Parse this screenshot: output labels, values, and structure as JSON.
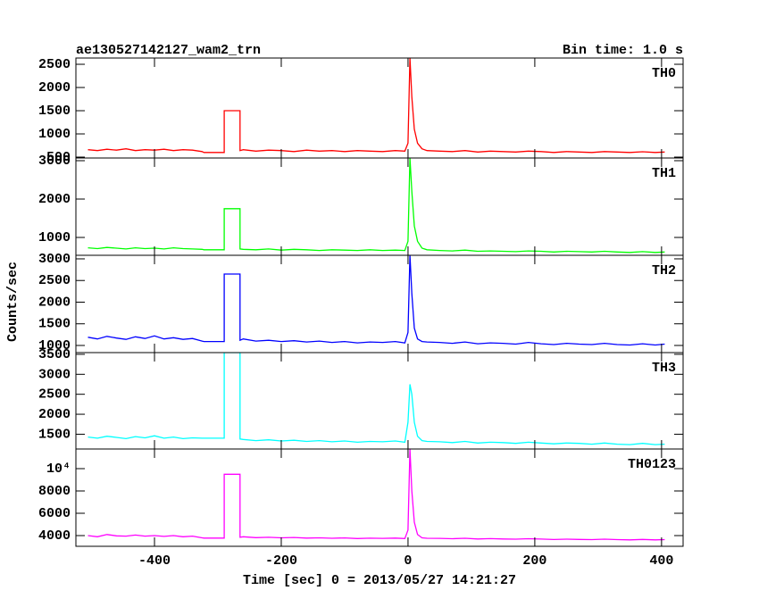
{
  "header": {
    "title": "ae130527142127_wam2_trn",
    "bin_time": "Bin time: 1.0 s"
  },
  "axes": {
    "xlabel": "Time [sec] 0 = 2013/05/27 14:21:27",
    "ylabel": "Counts/sec",
    "xlim": [
      -524,
      434
    ],
    "xticks": [
      -400,
      -200,
      0,
      200,
      400
    ]
  },
  "chart_data": [
    {
      "type": "line",
      "label": "TH0",
      "color": "#ff0000",
      "ylim": [
        481,
        2635
      ],
      "yticks": [
        500,
        1000,
        1500,
        2000,
        2500
      ],
      "x": [
        -505,
        -490,
        -475,
        -460,
        -445,
        -430,
        -415,
        -400,
        -385,
        -370,
        -355,
        -340,
        -325,
        -322,
        -290,
        -290,
        -265,
        -265,
        -260,
        -240,
        -220,
        -200,
        -180,
        -160,
        -140,
        -120,
        -100,
        -80,
        -60,
        -40,
        -20,
        -5,
        0,
        3,
        6,
        10,
        15,
        22,
        30,
        50,
        70,
        90,
        110,
        130,
        150,
        170,
        190,
        210,
        230,
        250,
        270,
        290,
        310,
        330,
        350,
        370,
        390,
        405
      ],
      "values": [
        660,
        640,
        670,
        650,
        680,
        640,
        660,
        650,
        670,
        640,
        660,
        650,
        620,
        600,
        600,
        1500,
        1500,
        640,
        660,
        630,
        650,
        640,
        620,
        650,
        630,
        640,
        620,
        640,
        630,
        620,
        640,
        630,
        800,
        2635,
        1800,
        1100,
        800,
        680,
        640,
        630,
        620,
        640,
        610,
        630,
        620,
        610,
        630,
        620,
        600,
        620,
        610,
        600,
        620,
        610,
        600,
        615,
        600,
        610
      ]
    },
    {
      "type": "line",
      "label": "TH1",
      "color": "#00ff00",
      "ylim": [
        535,
        3070
      ],
      "yticks": [
        1000,
        2000,
        3000
      ],
      "x": [
        -505,
        -490,
        -475,
        -460,
        -445,
        -430,
        -415,
        -400,
        -385,
        -370,
        -355,
        -340,
        -325,
        -322,
        -290,
        -290,
        -265,
        -265,
        -260,
        -240,
        -220,
        -200,
        -180,
        -160,
        -140,
        -120,
        -100,
        -80,
        -60,
        -40,
        -20,
        -5,
        0,
        3,
        6,
        10,
        15,
        22,
        30,
        50,
        70,
        90,
        110,
        130,
        150,
        170,
        190,
        210,
        230,
        250,
        270,
        290,
        310,
        330,
        350,
        370,
        390,
        405
      ],
      "values": [
        730,
        710,
        740,
        720,
        700,
        730,
        710,
        720,
        700,
        730,
        710,
        700,
        690,
        680,
        680,
        1750,
        1750,
        700,
        690,
        680,
        700,
        670,
        690,
        680,
        660,
        680,
        670,
        660,
        680,
        660,
        670,
        660,
        900,
        3070,
        2200,
        1300,
        900,
        720,
        680,
        660,
        650,
        670,
        640,
        650,
        640,
        630,
        650,
        640,
        620,
        640,
        630,
        620,
        640,
        620,
        610,
        630,
        610,
        620
      ]
    },
    {
      "type": "line",
      "label": "TH2",
      "color": "#0000ff",
      "ylim": [
        835,
        3082
      ],
      "yticks": [
        1000,
        1500,
        2000,
        2500,
        3000
      ],
      "x": [
        -505,
        -490,
        -475,
        -460,
        -445,
        -430,
        -415,
        -400,
        -385,
        -370,
        -355,
        -340,
        -325,
        -322,
        -290,
        -290,
        -265,
        -265,
        -260,
        -240,
        -220,
        -200,
        -180,
        -160,
        -140,
        -120,
        -100,
        -80,
        -60,
        -40,
        -20,
        -5,
        0,
        3,
        6,
        10,
        15,
        22,
        30,
        50,
        70,
        90,
        110,
        130,
        150,
        170,
        190,
        210,
        230,
        250,
        270,
        290,
        310,
        330,
        350,
        370,
        390,
        405
      ],
      "values": [
        1190,
        1150,
        1210,
        1170,
        1140,
        1200,
        1160,
        1220,
        1150,
        1180,
        1140,
        1160,
        1100,
        1090,
        1090,
        2650,
        2650,
        1120,
        1150,
        1100,
        1120,
        1090,
        1110,
        1080,
        1100,
        1070,
        1090,
        1060,
        1080,
        1070,
        1090,
        1060,
        1300,
        3082,
        2200,
        1400,
        1150,
        1090,
        1080,
        1070,
        1050,
        1080,
        1040,
        1060,
        1050,
        1030,
        1070,
        1040,
        1020,
        1050,
        1030,
        1020,
        1050,
        1020,
        1010,
        1040,
        1010,
        1030
      ]
    },
    {
      "type": "line",
      "label": "TH3",
      "color": "#00ffff",
      "ylim": [
        1130,
        3543
      ],
      "yticks": [
        1500,
        2000,
        2500,
        3000,
        3500
      ],
      "x": [
        -505,
        -490,
        -475,
        -460,
        -445,
        -430,
        -415,
        -400,
        -385,
        -370,
        -355,
        -340,
        -325,
        -322,
        -290,
        -290,
        -265,
        -265,
        -260,
        -240,
        -220,
        -200,
        -180,
        -160,
        -140,
        -120,
        -100,
        -80,
        -60,
        -40,
        -20,
        -5,
        0,
        3,
        6,
        10,
        15,
        22,
        30,
        50,
        70,
        90,
        110,
        130,
        150,
        170,
        190,
        210,
        230,
        250,
        270,
        290,
        310,
        330,
        350,
        370,
        390,
        405
      ],
      "values": [
        1430,
        1400,
        1450,
        1420,
        1390,
        1440,
        1410,
        1460,
        1400,
        1430,
        1390,
        1410,
        1400,
        1400,
        1400,
        3543,
        3543,
        1380,
        1370,
        1340,
        1360,
        1330,
        1350,
        1320,
        1340,
        1310,
        1330,
        1300,
        1320,
        1310,
        1330,
        1300,
        1800,
        2750,
        2500,
        1800,
        1450,
        1340,
        1320,
        1310,
        1290,
        1320,
        1280,
        1300,
        1290,
        1270,
        1300,
        1280,
        1260,
        1280,
        1270,
        1250,
        1280,
        1250,
        1240,
        1270,
        1240,
        1250
      ]
    },
    {
      "type": "line",
      "label": "TH0123",
      "color": "#ff00ff",
      "ylim": [
        3040,
        11760
      ],
      "yticks": [
        4000,
        6000,
        8000,
        {
          "value": 10000,
          "label": "10⁴"
        }
      ],
      "x": [
        -505,
        -490,
        -475,
        -460,
        -445,
        -430,
        -415,
        -400,
        -385,
        -370,
        -355,
        -340,
        -325,
        -322,
        -290,
        -290,
        -265,
        -265,
        -260,
        -240,
        -220,
        -200,
        -180,
        -160,
        -140,
        -120,
        -100,
        -80,
        -60,
        -40,
        -20,
        -5,
        0,
        3,
        6,
        10,
        15,
        22,
        30,
        50,
        70,
        90,
        110,
        130,
        150,
        170,
        190,
        210,
        230,
        250,
        270,
        290,
        310,
        330,
        350,
        370,
        390,
        405
      ],
      "values": [
        4000,
        3900,
        4100,
        3980,
        3950,
        4050,
        3950,
        4000,
        3930,
        4000,
        3900,
        3950,
        3800,
        3780,
        3780,
        9500,
        9500,
        3850,
        3900,
        3820,
        3850,
        3800,
        3830,
        3780,
        3800,
        3760,
        3790,
        3740,
        3770,
        3750,
        3780,
        3740,
        4500,
        11760,
        8000,
        5200,
        4100,
        3800,
        3760,
        3750,
        3720,
        3760,
        3700,
        3730,
        3700,
        3680,
        3720,
        3690,
        3650,
        3680,
        3660,
        3640,
        3680,
        3640,
        3620,
        3660,
        3620,
        3640
      ]
    }
  ]
}
